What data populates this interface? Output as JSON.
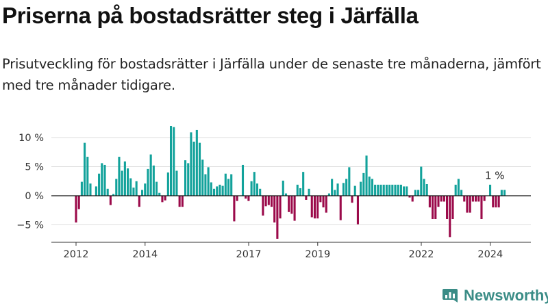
{
  "title": "Priserna på bostadsrätter steg i Järfälla",
  "subtitle": "Prisutveckling för bostadsrätter i Järfälla under de senaste tre månaderna, jämfört med tre månader tidigare.",
  "brand": {
    "name": "Newsworthy",
    "color": "#3a8c86"
  },
  "colors": {
    "positive": "#12a29b",
    "negative": "#9b0a4a",
    "grid": "#dddddd",
    "axis": "#333333"
  },
  "chart_data": {
    "type": "bar",
    "title": "Priserna på bostadsrätter steg i Järfälla",
    "xlabel": "",
    "ylabel": "",
    "ylim": [
      -8,
      12
    ],
    "x_start": 2012.0,
    "x_step": 0.0833,
    "x_ticks": [
      {
        "value": 2012,
        "label": "2012"
      },
      {
        "value": 2014,
        "label": "2014"
      },
      {
        "value": 2017,
        "label": "2017"
      },
      {
        "value": 2019,
        "label": "2019"
      },
      {
        "value": 2022,
        "label": "2022"
      },
      {
        "value": 2024,
        "label": "2024"
      }
    ],
    "y_ticks": [
      {
        "value": 10,
        "label": "10 %"
      },
      {
        "value": 5,
        "label": "5 %"
      },
      {
        "value": 0,
        "label": "0 %"
      },
      {
        "value": -5,
        "label": "−5 %"
      }
    ],
    "annotation": {
      "text": "1 %",
      "value": 1,
      "position": "above last bar"
    },
    "series": [
      {
        "name": "Prisutveckling (%)",
        "values": [
          -4.6,
          -2.3,
          2.4,
          9.1,
          6.7,
          2.1,
          0,
          1.6,
          3.8,
          5.6,
          5.3,
          1.2,
          -1.6,
          0.3,
          2.9,
          6.7,
          4.3,
          5.9,
          4.7,
          3.0,
          1.4,
          2.5,
          -1.9,
          1.0,
          2.1,
          4.6,
          7.1,
          5.2,
          2.4,
          0.5,
          -1.1,
          -0.8,
          4.0,
          12.0,
          11.8,
          4.3,
          -1.9,
          -1.9,
          6.1,
          5.6,
          10.9,
          9.3,
          11.3,
          9.1,
          6.2,
          3.7,
          4.9,
          2.3,
          1.2,
          1.6,
          1.9,
          1.7,
          3.8,
          2.9,
          3.7,
          -4.4,
          -0.9,
          0,
          5.3,
          -0.5,
          -0.9,
          2.5,
          4.1,
          2.1,
          1.2,
          -3.4,
          -1.8,
          -1.6,
          -1.9,
          -4.6,
          -7.4,
          -3.9,
          2.6,
          0.4,
          -2.8,
          -3.1,
          -4.3,
          1.9,
          1.3,
          4.1,
          -0.7,
          1.2,
          -3.7,
          -3.9,
          -3.9,
          -1.1,
          -2.0,
          -2.9,
          0.4,
          2.9,
          1.0,
          2.1,
          -4.2,
          2.2,
          2.9,
          4.9,
          -1.2,
          1.7,
          -4.9,
          2.4,
          3.9,
          6.9,
          3.3,
          2.9,
          1.9,
          1.9,
          1.9,
          1.9,
          1.9,
          1.9,
          1.9,
          1.9,
          1.9,
          1.9,
          1.6,
          1.6,
          -0.3,
          -1.0,
          1.0,
          1.0,
          5.0,
          2.9,
          2.0,
          -2.0,
          -4.0,
          -4.0,
          -1.9,
          -1.0,
          -1.0,
          -4.0,
          -7.1,
          -4.0,
          1.9,
          2.9,
          1.0,
          -1.0,
          -2.9,
          -2.9,
          -1.0,
          -1.0,
          -1.0,
          -4.0,
          -0.9,
          0,
          1.9,
          -2.0,
          -2.0,
          -2.0,
          1.0,
          1.0
        ]
      }
    ]
  }
}
